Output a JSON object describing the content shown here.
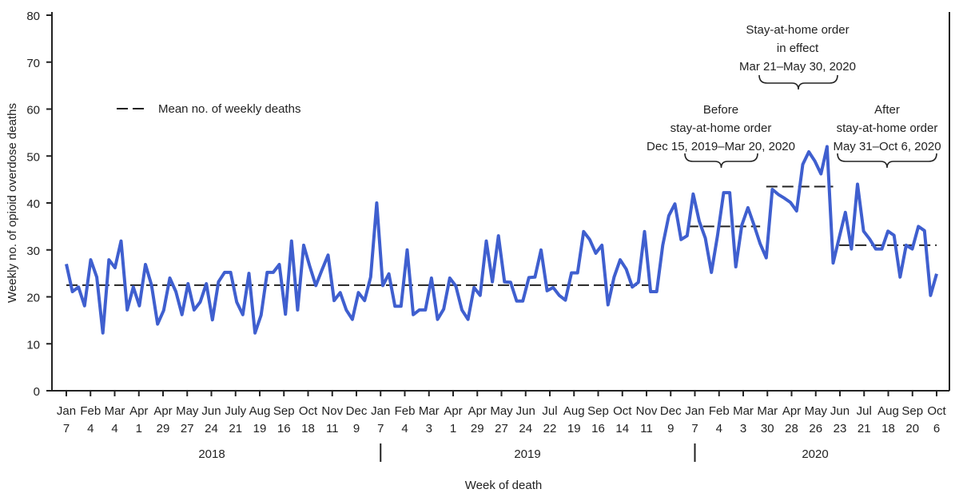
{
  "chart_data": {
    "type": "line",
    "xlabel": "Week of death",
    "ylabel": "Weekly no. of opioid overdose deaths",
    "ylim": [
      0,
      80
    ],
    "yticks": [
      0,
      10,
      20,
      30,
      40,
      50,
      60,
      70,
      80
    ],
    "grid": false,
    "legend_placement": "top-left",
    "legend_label": "Mean no. of weekly deaths",
    "line_color": "#3f5fcf",
    "mean_line_color": "#222222",
    "xtick_labels": [
      [
        "Jan",
        "7"
      ],
      [
        "Feb",
        "4"
      ],
      [
        "Mar",
        "4"
      ],
      [
        "Apr",
        "1"
      ],
      [
        "Apr",
        "29"
      ],
      [
        "May",
        "27"
      ],
      [
        "Jun",
        "24"
      ],
      [
        "July",
        "21"
      ],
      [
        "Aug",
        "19"
      ],
      [
        "Sep",
        "16"
      ],
      [
        "Oct",
        "18"
      ],
      [
        "Nov",
        "11"
      ],
      [
        "Dec",
        "9"
      ],
      [
        "Jan",
        "7"
      ],
      [
        "Feb",
        "4"
      ],
      [
        "Mar",
        "3"
      ],
      [
        "Apr",
        "1"
      ],
      [
        "Apr",
        "29"
      ],
      [
        "May",
        "27"
      ],
      [
        "Jun",
        "24"
      ],
      [
        "Jul",
        "22"
      ],
      [
        "Aug",
        "19"
      ],
      [
        "Sep",
        "16"
      ],
      [
        "Oct",
        "14"
      ],
      [
        "Nov",
        "11"
      ],
      [
        "Dec",
        "9"
      ],
      [
        "Jan",
        "7"
      ],
      [
        "Feb",
        "4"
      ],
      [
        "Mar",
        "3"
      ],
      [
        "Mar",
        "30"
      ],
      [
        "Apr",
        "28"
      ],
      [
        "May",
        "26"
      ],
      [
        "Jun",
        "23"
      ],
      [
        "Jul",
        "21"
      ],
      [
        "Aug",
        "18"
      ],
      [
        "Sep",
        "20"
      ],
      [
        "Oct",
        "6"
      ]
    ],
    "years": [
      "2018",
      "2019",
      "2020"
    ],
    "weekly_deaths": [
      27,
      21.1,
      22.1,
      18.1,
      27.9,
      24.2,
      12.3,
      27.9,
      26.2,
      31.9,
      17.2,
      22.1,
      18.1,
      26.9,
      22.5,
      14.2,
      17.1,
      24,
      21.1,
      16.2,
      22.8,
      17.2,
      18.9,
      22.8,
      15.1,
      23.2,
      25.2,
      25.2,
      18.9,
      16.2,
      25,
      12.3,
      16.1,
      25.2,
      25.2,
      26.9,
      16.3,
      31.9,
      17.2,
      31,
      26.5,
      22.4,
      25.7,
      28.9,
      19.2,
      20.9,
      17.2,
      15.2,
      20.9,
      19.2,
      24.2,
      40,
      22.4,
      24.9,
      18,
      18,
      30,
      16.2,
      17.2,
      17.2,
      24,
      15.2,
      17.4,
      24,
      22.3,
      17.2,
      15.2,
      22,
      20.3,
      31.9,
      23.2,
      33,
      23.2,
      23.1,
      19.1,
      19.1,
      24.1,
      24.2,
      30,
      21.3,
      22,
      20.3,
      19.3,
      25.1,
      25.1,
      33.9,
      32.2,
      29.3,
      31,
      18.3,
      24.2,
      27.9,
      25.9,
      22.1,
      23.1,
      33.9,
      21.1,
      21.1,
      31,
      37.3,
      39.8,
      32.2,
      33,
      41.9,
      36.1,
      32.5,
      25.2,
      33,
      42.2,
      42.2,
      26.4,
      35.3,
      39,
      35.3,
      31.3,
      28.3,
      42.9,
      41.8,
      41,
      40.1,
      38.3,
      48.2,
      50.9,
      48.9,
      46.2,
      52,
      27.2,
      32.7,
      38,
      30.2,
      44,
      34,
      32.3,
      30.2,
      30.2,
      34,
      33.1,
      24.2,
      31,
      30.2,
      35,
      34.1,
      20.3,
      24.9
    ],
    "means": [
      {
        "period": "2018–2019",
        "value": 22.5
      },
      {
        "period": "Before stay-at-home order",
        "value": 35
      },
      {
        "period": "Stay-at-home order in effect",
        "value": 43.5
      },
      {
        "period": "After stay-at-home order",
        "value": 31
      }
    ],
    "annotations": {
      "before": [
        "Before",
        "stay-at-home order",
        "Dec 15, 2019–Mar 20, 2020"
      ],
      "during": [
        "Stay-at-home order",
        "in effect",
        "Mar 21–May 30, 2020"
      ],
      "after": [
        "After",
        "stay-at-home order",
        "May 31–Oct 6, 2020"
      ]
    }
  }
}
